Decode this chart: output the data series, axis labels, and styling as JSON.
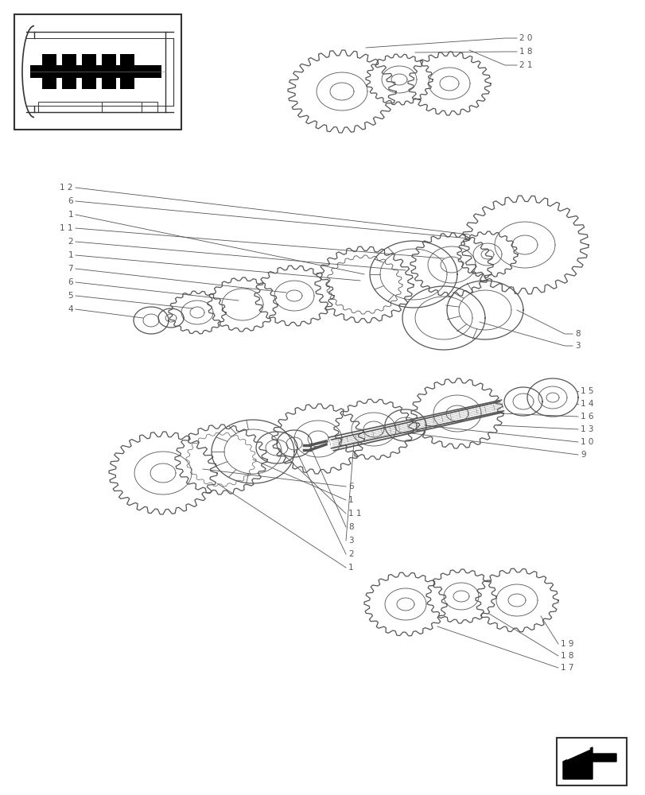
{
  "bg_color": "#ffffff",
  "lc": "#555555",
  "figsize": [
    8.12,
    10.0
  ],
  "dpi": 100,
  "lw_thin": 0.6,
  "lw_med": 0.9,
  "lw_thick": 1.3,
  "label_fs": 7.5
}
